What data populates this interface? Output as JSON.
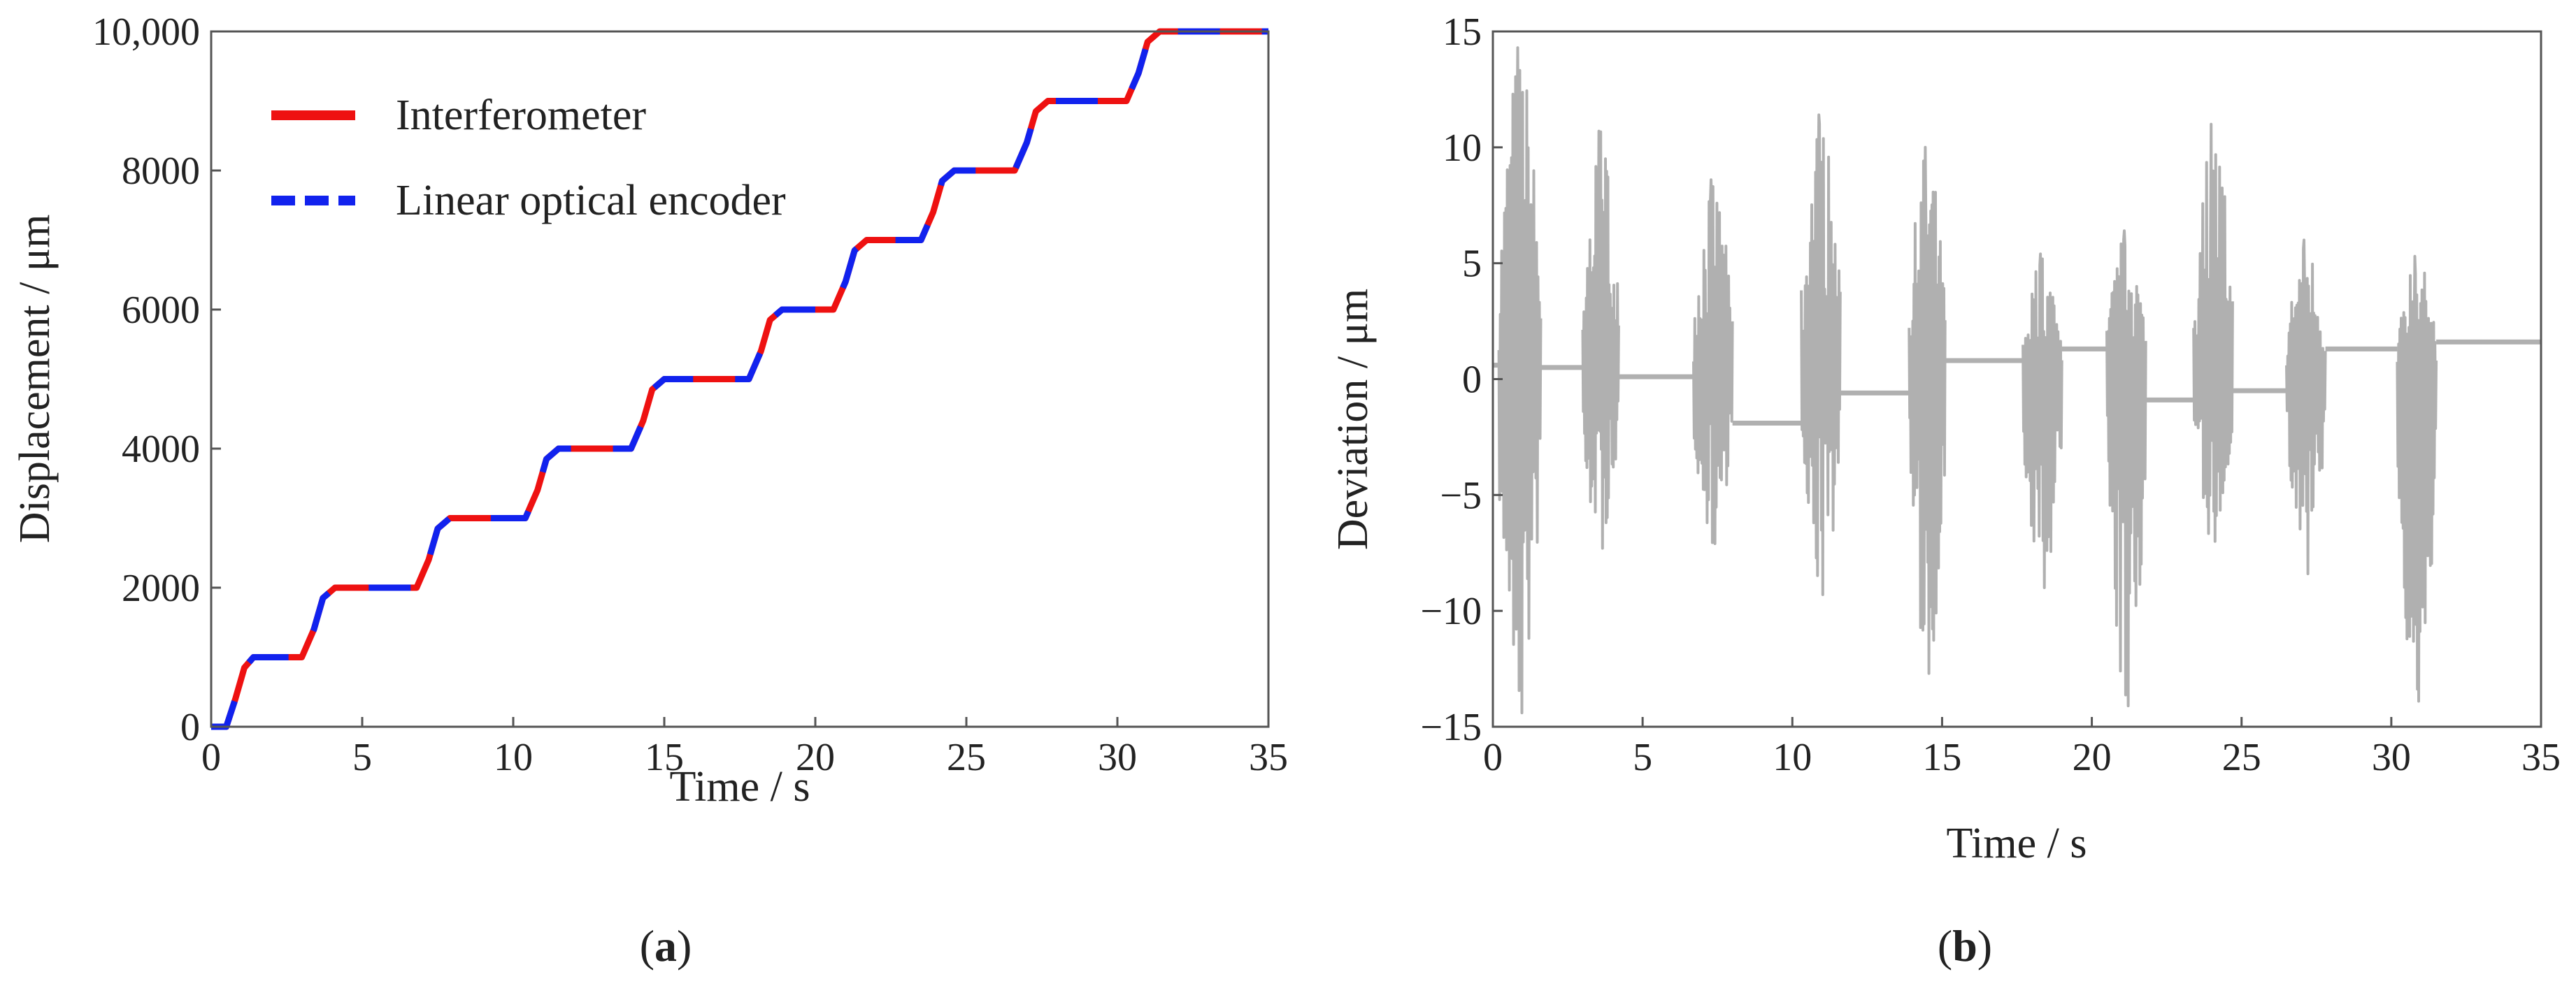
{
  "panels": [
    {
      "label": "(a)",
      "label_parts": {
        "open": "(",
        "letter": "a",
        "close": ")"
      },
      "chart_data": {
        "type": "line",
        "title": "",
        "xlabel": "Time / s",
        "ylabel": "Displacement / μm",
        "xlim": [
          0,
          35
        ],
        "ylim": [
          0,
          10000
        ],
        "xticks": [
          "0",
          "5",
          "10",
          "15",
          "20",
          "25",
          "30",
          "35"
        ],
        "yticks": [
          "0",
          "2000",
          "4000",
          "6000",
          "8000",
          "10,000"
        ],
        "grid": false,
        "legend": "top-left",
        "series": [
          {
            "name": "Interferometer",
            "color": "#ee1111",
            "style": "solid",
            "x": [
              0,
              0.5,
              0.8,
              1.1,
              1.4,
              3.0,
              3.4,
              3.7,
              4.1,
              6.8,
              7.2,
              7.5,
              7.9,
              10.4,
              10.8,
              11.1,
              11.5,
              13.9,
              14.3,
              14.6,
              15.0,
              17.8,
              18.2,
              18.5,
              18.9,
              20.6,
              21.0,
              21.3,
              21.7,
              23.5,
              23.9,
              24.2,
              24.6,
              26.6,
              27.0,
              27.3,
              27.7,
              30.3,
              30.7,
              31.0,
              31.4,
              35
            ],
            "y": [
              0,
              0,
              400,
              850,
              1000,
              1000,
              1400,
              1850,
              2000,
              2000,
              2400,
              2850,
              3000,
              3000,
              3400,
              3850,
              4000,
              4000,
              4400,
              4850,
              5000,
              5000,
              5400,
              5850,
              6000,
              6000,
              6400,
              6850,
              7000,
              7000,
              7400,
              7850,
              8000,
              8000,
              8400,
              8850,
              9000,
              9000,
              9400,
              9850,
              10000,
              10000
            ]
          },
          {
            "name": "Linear optical encoder",
            "color": "#1122ee",
            "style": "dashed",
            "x": [
              0,
              0.5,
              0.8,
              1.1,
              1.4,
              3.0,
              3.4,
              3.7,
              4.1,
              6.8,
              7.2,
              7.5,
              7.9,
              10.4,
              10.8,
              11.1,
              11.5,
              13.9,
              14.3,
              14.6,
              15.0,
              17.8,
              18.2,
              18.5,
              18.9,
              20.6,
              21.0,
              21.3,
              21.7,
              23.5,
              23.9,
              24.2,
              24.6,
              26.6,
              27.0,
              27.3,
              27.7,
              30.3,
              30.7,
              31.0,
              31.4,
              35
            ],
            "y": [
              0,
              0,
              400,
              850,
              1000,
              1000,
              1400,
              1850,
              2000,
              2000,
              2400,
              2850,
              3000,
              3000,
              3400,
              3850,
              4000,
              4000,
              4400,
              4850,
              5000,
              5000,
              5400,
              5850,
              6000,
              6000,
              6400,
              6850,
              7000,
              7000,
              7400,
              7850,
              8000,
              8000,
              8400,
              8850,
              9000,
              9000,
              9400,
              9850,
              10000,
              10000
            ]
          }
        ]
      }
    },
    {
      "label": "(b)",
      "label_parts": {
        "open": "(",
        "letter": "b",
        "close": ")"
      },
      "chart_data": {
        "type": "line",
        "title": "",
        "xlabel": "Time / s",
        "ylabel": "Deviation / μm",
        "xlim": [
          0,
          35
        ],
        "ylim": [
          -15,
          15
        ],
        "xticks": [
          "0",
          "5",
          "10",
          "15",
          "20",
          "25",
          "30",
          "35"
        ],
        "yticks": [
          "−15",
          "−10",
          "−5",
          "0",
          "5",
          "10",
          "15"
        ],
        "grid": false,
        "legend": "none",
        "series": [
          {
            "color": "#b0b0b0",
            "style": "solid",
            "baseline_segments": [
              {
                "x": [
                  0,
                  0.2
                ],
                "y": 0.6
              },
              {
                "x": [
                  1.6,
                  3.0
                ],
                "y": 0.5
              },
              {
                "x": [
                  4.2,
                  6.7
                ],
                "y": 0.1
              },
              {
                "x": [
                  8.0,
                  10.3
                ],
                "y": -1.9
              },
              {
                "x": [
                  11.6,
                  13.9
                ],
                "y": -0.6
              },
              {
                "x": [
                  15.1,
                  17.7
                ],
                "y": 0.8
              },
              {
                "x": [
                  19.0,
                  20.5
                ],
                "y": 1.3
              },
              {
                "x": [
                  21.8,
                  23.4
                ],
                "y": -0.9
              },
              {
                "x": [
                  24.7,
                  26.5
                ],
                "y": -0.5
              },
              {
                "x": [
                  27.8,
                  30.2
                ],
                "y": 1.3
              },
              {
                "x": [
                  31.5,
                  35
                ],
                "y": 1.6
              }
            ],
            "bursts": [
              {
                "x": [
                  0.2,
                  1.6
                ],
                "min": -14.4,
                "max": 14.3
              },
              {
                "x": [
                  3.0,
                  4.2
                ],
                "min": -7.3,
                "max": 10.7
              },
              {
                "x": [
                  6.7,
                  8.0
                ],
                "min": -7.1,
                "max": 8.6
              },
              {
                "x": [
                  10.3,
                  11.6
                ],
                "min": -9.3,
                "max": 11.4
              },
              {
                "x": [
                  13.9,
                  15.1
                ],
                "min": -12.7,
                "max": 10.0
              },
              {
                "x": [
                  17.7,
                  19.0
                ],
                "min": -9.0,
                "max": 5.4
              },
              {
                "x": [
                  20.5,
                  21.8
                ],
                "min": -14.1,
                "max": 6.4
              },
              {
                "x": [
                  23.4,
                  24.7
                ],
                "min": -7.0,
                "max": 11.0
              },
              {
                "x": [
                  26.5,
                  27.8
                ],
                "min": -8.4,
                "max": 6.0
              },
              {
                "x": [
                  30.2,
                  31.5
                ],
                "min": -13.9,
                "max": 5.3
              }
            ]
          }
        ]
      }
    }
  ]
}
